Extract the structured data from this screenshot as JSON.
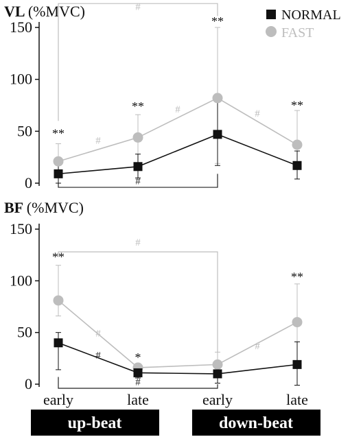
{
  "legend": {
    "items": [
      {
        "label": "NORMAL",
        "marker": "square",
        "color": "#111111"
      },
      {
        "label": "FAST",
        "marker": "circle",
        "color": "#bdbdbd"
      }
    ]
  },
  "x_tick_labels": [
    "early",
    "late",
    "early",
    "late"
  ],
  "phase_labels": [
    "up-beat",
    "down-beat"
  ],
  "chart_data": [
    {
      "type": "line",
      "title_bold": "VL",
      "title_rest": "(%MVC)",
      "ylim": [
        0,
        150
      ],
      "yticks": [
        0,
        50,
        100,
        150
      ],
      "categories": [
        "early",
        "late",
        "early",
        "late"
      ],
      "series": [
        {
          "name": "NORMAL",
          "values": [
            9,
            16,
            47,
            17
          ],
          "err_up": [
            9,
            12,
            33,
            14
          ],
          "err_down": [
            9,
            11,
            30,
            13
          ]
        },
        {
          "name": "FAST",
          "values": [
            21,
            44,
            82,
            37
          ],
          "err_up": [
            17,
            22,
            68,
            33
          ],
          "err_down": [
            21,
            39,
            63,
            33
          ]
        }
      ],
      "stars": [
        {
          "x": 0,
          "y": 44,
          "label": "**"
        },
        {
          "x": 1,
          "y": 70,
          "label": "**"
        },
        {
          "x": 2,
          "y": 152,
          "label": "**"
        },
        {
          "x": 3,
          "y": 71,
          "label": "**"
        }
      ],
      "hashes": [
        {
          "x": 0.5,
          "y": 38,
          "label": "#",
          "color": "#bdbdbd"
        },
        {
          "x": 1.5,
          "y": 68,
          "label": "#",
          "color": "#bdbdbd"
        },
        {
          "x": 2.5,
          "y": 64,
          "label": "#",
          "color": "#bdbdbd"
        },
        {
          "x": 1,
          "y": 167,
          "label": "#",
          "color": "#bdbdbd"
        },
        {
          "x": 1,
          "y": -1,
          "label": "#",
          "color": "#222222"
        }
      ],
      "brackets": [
        {
          "x_from": 0,
          "x_to": 2,
          "y": 173,
          "y_left_end": 60,
          "y_right_end": 161,
          "color": "#bdbdbd"
        },
        {
          "x_from": 0,
          "x_to": 2,
          "y": -4,
          "y_left_end": 0,
          "y_right_end": 9,
          "color": "#222222"
        }
      ]
    },
    {
      "type": "line",
      "title_bold": "BF",
      "title_rest": "(%MVC)",
      "ylim": [
        0,
        150
      ],
      "yticks": [
        0,
        50,
        100,
        150
      ],
      "categories": [
        "early",
        "late",
        "early",
        "late"
      ],
      "series": [
        {
          "name": "NORMAL",
          "values": [
            40,
            11,
            10,
            19
          ],
          "err_up": [
            10,
            4,
            5,
            22
          ],
          "err_down": [
            26,
            5,
            9,
            20
          ]
        },
        {
          "name": "FAST",
          "values": [
            81,
            16,
            19,
            60
          ],
          "err_up": [
            34,
            2,
            12,
            37
          ],
          "err_down": [
            15,
            10,
            8,
            19
          ]
        }
      ],
      "stars": [
        {
          "x": 0,
          "y": 119,
          "label": "**"
        },
        {
          "x": 1,
          "y": 22,
          "label": "*"
        },
        {
          "x": 3,
          "y": 100,
          "label": "**"
        }
      ],
      "hashes": [
        {
          "x": 0.5,
          "y": 46,
          "label": "#",
          "color": "#bdbdbd"
        },
        {
          "x": 2.5,
          "y": 34,
          "label": "#",
          "color": "#bdbdbd"
        },
        {
          "x": 0.5,
          "y": 25,
          "label": "#",
          "color": "#222222"
        },
        {
          "x": 1,
          "y": 134,
          "label": "#",
          "color": "#bdbdbd"
        },
        {
          "x": 1,
          "y": -1,
          "label": "#",
          "color": "#222222"
        }
      ],
      "brackets": [
        {
          "x_from": 0,
          "x_to": 2,
          "y": 128,
          "y_left_end": 123,
          "y_right_end": 31,
          "color": "#bdbdbd"
        },
        {
          "x_from": 0,
          "x_to": 2,
          "y": -4,
          "y_left_end": 7,
          "y_right_end": 0,
          "color": "#222222"
        }
      ]
    }
  ]
}
